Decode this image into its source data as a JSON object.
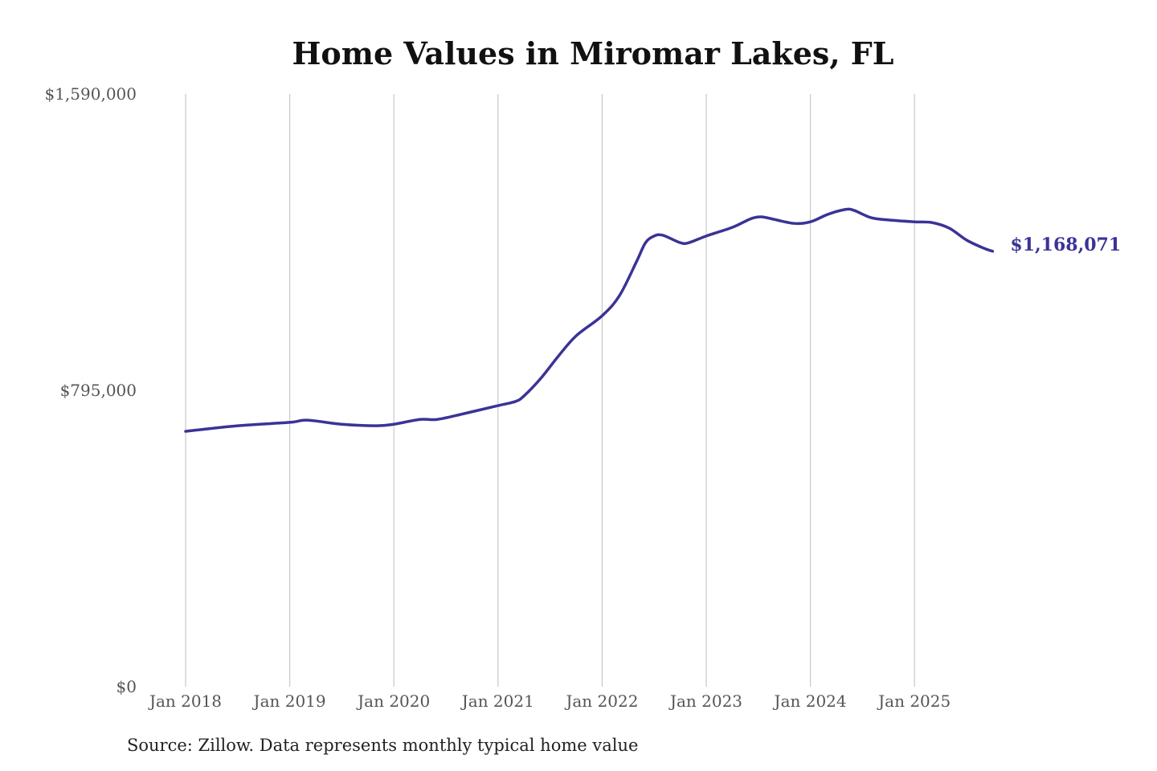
{
  "chart_data": {
    "type": "line",
    "title": "Home Values in Miromar Lakes, FL",
    "source": "Source: Zillow. Data represents monthly typical home value",
    "xlabel": "",
    "ylabel": "",
    "ylim": [
      0,
      1590000
    ],
    "y_ticks": [
      {
        "value": 0,
        "label": "$0"
      },
      {
        "value": 795000,
        "label": "$795,000"
      },
      {
        "value": 1590000,
        "label": "$1,590,000"
      }
    ],
    "x_ticks": [
      {
        "value": "2018-01",
        "label": "Jan 2018"
      },
      {
        "value": "2019-01",
        "label": "Jan 2019"
      },
      {
        "value": "2020-01",
        "label": "Jan 2020"
      },
      {
        "value": "2021-01",
        "label": "Jan 2021"
      },
      {
        "value": "2022-01",
        "label": "Jan 2022"
      },
      {
        "value": "2023-01",
        "label": "Jan 2023"
      },
      {
        "value": "2024-01",
        "label": "Jan 2024"
      },
      {
        "value": "2025-01",
        "label": "Jan 2025"
      }
    ],
    "grid": "vertical",
    "line_color": "#3a3397",
    "end_label": "$1,168,071",
    "series": [
      {
        "x": [
          "2018-01",
          "2018-07",
          "2019-01",
          "2019-03",
          "2019-07",
          "2019-11",
          "2020-01",
          "2020-04",
          "2020-06",
          "2020-09",
          "2021-01",
          "2021-03",
          "2021-04",
          "2021-06",
          "2021-08",
          "2021-10",
          "2022-01",
          "2022-03",
          "2022-05",
          "2022-06",
          "2022-07",
          "2022-08",
          "2022-10",
          "2022-11",
          "2023-01",
          "2023-04",
          "2023-06",
          "2023-07",
          "2023-08",
          "2023-11",
          "2024-01",
          "2024-03",
          "2024-05",
          "2024-06",
          "2024-08",
          "2024-10",
          "2025-01",
          "2025-03",
          "2025-05",
          "2025-07",
          "2025-09",
          "2025-10"
        ],
        "y": [
          685000,
          700000,
          709000,
          715000,
          704000,
          700000,
          704000,
          717000,
          717000,
          732000,
          754000,
          765000,
          780000,
          829000,
          888000,
          941000,
          995000,
          1049000,
          1142000,
          1191000,
          1209000,
          1211000,
          1191000,
          1191000,
          1209000,
          1232000,
          1254000,
          1260000,
          1258000,
          1243000,
          1247000,
          1267000,
          1280000,
          1278000,
          1258000,
          1252000,
          1247000,
          1245000,
          1230000,
          1198000,
          1176000,
          1168071
        ]
      }
    ]
  }
}
